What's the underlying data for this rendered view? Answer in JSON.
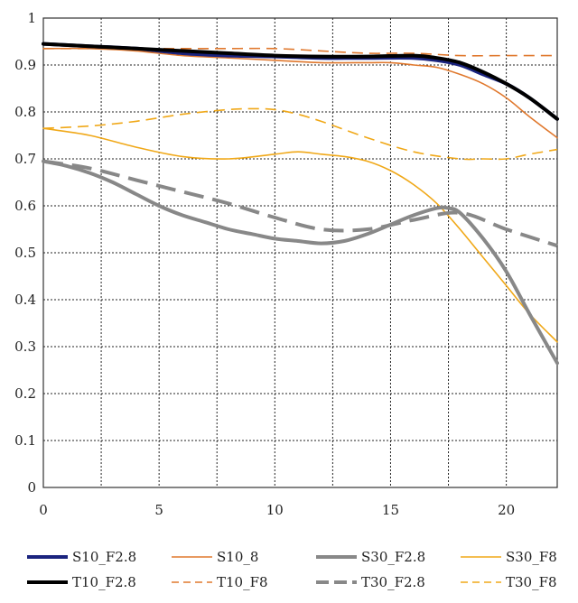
{
  "chart_data": {
    "type": "line",
    "title": "",
    "xlabel": "",
    "ylabel": "",
    "xlim": [
      0,
      22.2
    ],
    "ylim": [
      0,
      1
    ],
    "x_ticks": [
      0,
      5,
      10,
      15,
      20
    ],
    "y_ticks": [
      0,
      0.1,
      0.2,
      0.3,
      0.4,
      0.5,
      0.6,
      0.7,
      0.8,
      0.9,
      1
    ],
    "x_tick_labels": [
      "0",
      "5",
      "10",
      "15",
      "20"
    ],
    "y_tick_labels": [
      "0",
      "0.1",
      "0.2",
      "0.3",
      "0.4",
      "0.5",
      "0.6",
      "0.7",
      "0.8",
      "0.9",
      "1"
    ],
    "grid": "dotted",
    "legend_position": "bottom",
    "series": [
      {
        "name": "S10_F2.8",
        "color": "#1a237e",
        "style": "solid",
        "weight": "heavy",
        "x": [
          0,
          2,
          4,
          6,
          8,
          10,
          12,
          14,
          16,
          17,
          18,
          19,
          20,
          21,
          22.2
        ],
        "y": [
          0.945,
          0.94,
          0.935,
          0.925,
          0.92,
          0.918,
          0.915,
          0.915,
          0.915,
          0.91,
          0.9,
          0.88,
          0.86,
          0.83,
          0.785
        ]
      },
      {
        "name": "T10_F2.8",
        "color": "#000000",
        "style": "solid",
        "weight": "heavy",
        "x": [
          0,
          2,
          4,
          6,
          8,
          10,
          12,
          14,
          16,
          17,
          18,
          19,
          20,
          21,
          22.2
        ],
        "y": [
          0.945,
          0.94,
          0.935,
          0.93,
          0.925,
          0.92,
          0.918,
          0.918,
          0.92,
          0.915,
          0.905,
          0.885,
          0.86,
          0.83,
          0.785
        ]
      },
      {
        "name": "S10_8",
        "color": "#e0782d",
        "style": "solid",
        "weight": "thin",
        "x": [
          0,
          2,
          4,
          6,
          8,
          10,
          12,
          14,
          15,
          16,
          17,
          18,
          19,
          20,
          21,
          22.2
        ],
        "y": [
          0.935,
          0.935,
          0.93,
          0.92,
          0.915,
          0.91,
          0.905,
          0.905,
          0.905,
          0.9,
          0.895,
          0.88,
          0.86,
          0.83,
          0.79,
          0.745
        ]
      },
      {
        "name": "T10_F8",
        "color": "#e0782d",
        "style": "dashed",
        "weight": "thin",
        "x": [
          0,
          2,
          4,
          6,
          8,
          10,
          12,
          14,
          16,
          18,
          20,
          22.2
        ],
        "y": [
          0.935,
          0.935,
          0.935,
          0.935,
          0.935,
          0.935,
          0.93,
          0.925,
          0.925,
          0.92,
          0.92,
          0.92
        ]
      },
      {
        "name": "S30_F2.8",
        "color": "#888888",
        "style": "solid",
        "weight": "heavy",
        "x": [
          0,
          1,
          2,
          3,
          4,
          5,
          6,
          7,
          8,
          9,
          10,
          11,
          12,
          13,
          14,
          15,
          16,
          17,
          17.5,
          18,
          19,
          20,
          21,
          22.2
        ],
        "y": [
          0.695,
          0.685,
          0.67,
          0.65,
          0.625,
          0.6,
          0.58,
          0.565,
          0.55,
          0.54,
          0.53,
          0.525,
          0.52,
          0.525,
          0.54,
          0.56,
          0.58,
          0.595,
          0.595,
          0.585,
          0.53,
          0.46,
          0.37,
          0.265
        ]
      },
      {
        "name": "T30_F2.8",
        "color": "#888888",
        "style": "dashed",
        "weight": "heavy",
        "x": [
          0,
          2,
          4,
          6,
          8,
          10,
          12,
          14,
          16,
          18,
          20,
          22.2
        ],
        "y": [
          0.695,
          0.68,
          0.655,
          0.63,
          0.605,
          0.575,
          0.55,
          0.55,
          0.57,
          0.585,
          0.55,
          0.515
        ]
      },
      {
        "name": "S30_F8",
        "color": "#f0a818",
        "style": "solid",
        "weight": "thin",
        "x": [
          0,
          2,
          4,
          6,
          8,
          10,
          11,
          12,
          13,
          14,
          15,
          16,
          17,
          18,
          19,
          20,
          21,
          22.2
        ],
        "y": [
          0.765,
          0.75,
          0.725,
          0.705,
          0.7,
          0.71,
          0.715,
          0.71,
          0.705,
          0.695,
          0.675,
          0.645,
          0.605,
          0.55,
          0.49,
          0.43,
          0.37,
          0.31
        ]
      },
      {
        "name": "T30_F8",
        "color": "#f0a818",
        "style": "dashed",
        "weight": "thin",
        "x": [
          0,
          2,
          4,
          6,
          8,
          9,
          10,
          11,
          12,
          14,
          16,
          18,
          19,
          20,
          21,
          22.2
        ],
        "y": [
          0.765,
          0.77,
          0.78,
          0.795,
          0.805,
          0.807,
          0.805,
          0.795,
          0.78,
          0.745,
          0.715,
          0.7,
          0.7,
          0.7,
          0.71,
          0.72
        ]
      }
    ],
    "legend": [
      [
        "S10_F2.8",
        "S10_8",
        "S30_F2.8",
        "S30_F8"
      ],
      [
        "T10_F2.8",
        "T10_F8",
        "T30_F2.8",
        "T30_F8"
      ]
    ]
  }
}
